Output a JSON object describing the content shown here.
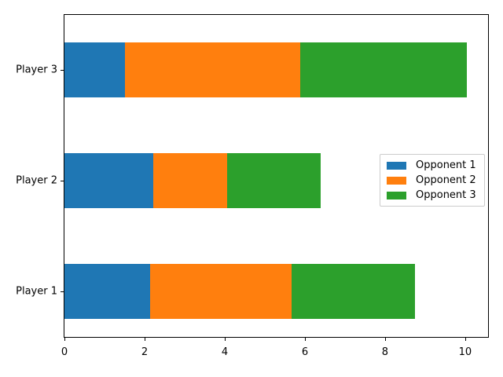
{
  "chart_data": {
    "type": "bar",
    "orientation": "horizontal",
    "stacked": true,
    "title": "",
    "xlabel": "",
    "ylabel": "",
    "categories": [
      "Player 1",
      "Player 2",
      "Player 3"
    ],
    "series": [
      {
        "name": "Opponent 1",
        "color": "#1f77b4",
        "values": [
          2.13,
          2.21,
          1.51
        ]
      },
      {
        "name": "Opponent 2",
        "color": "#ff7f0e",
        "values": [
          3.53,
          1.85,
          4.38
        ]
      },
      {
        "name": "Opponent 3",
        "color": "#2ca02c",
        "values": [
          3.08,
          2.33,
          4.16
        ]
      }
    ],
    "totals": [
      8.74,
      6.39,
      10.05
    ],
    "x_ticks": [
      0,
      2,
      4,
      6,
      8,
      10
    ],
    "xlim": [
      0,
      10.57
    ],
    "grid": false,
    "legend": {
      "position": "center-right",
      "entries": [
        "Opponent 1",
        "Opponent 2",
        "Opponent 3"
      ]
    }
  },
  "colors": {
    "axis": "#000000",
    "background": "#ffffff",
    "legend_border": "#cccccc"
  }
}
